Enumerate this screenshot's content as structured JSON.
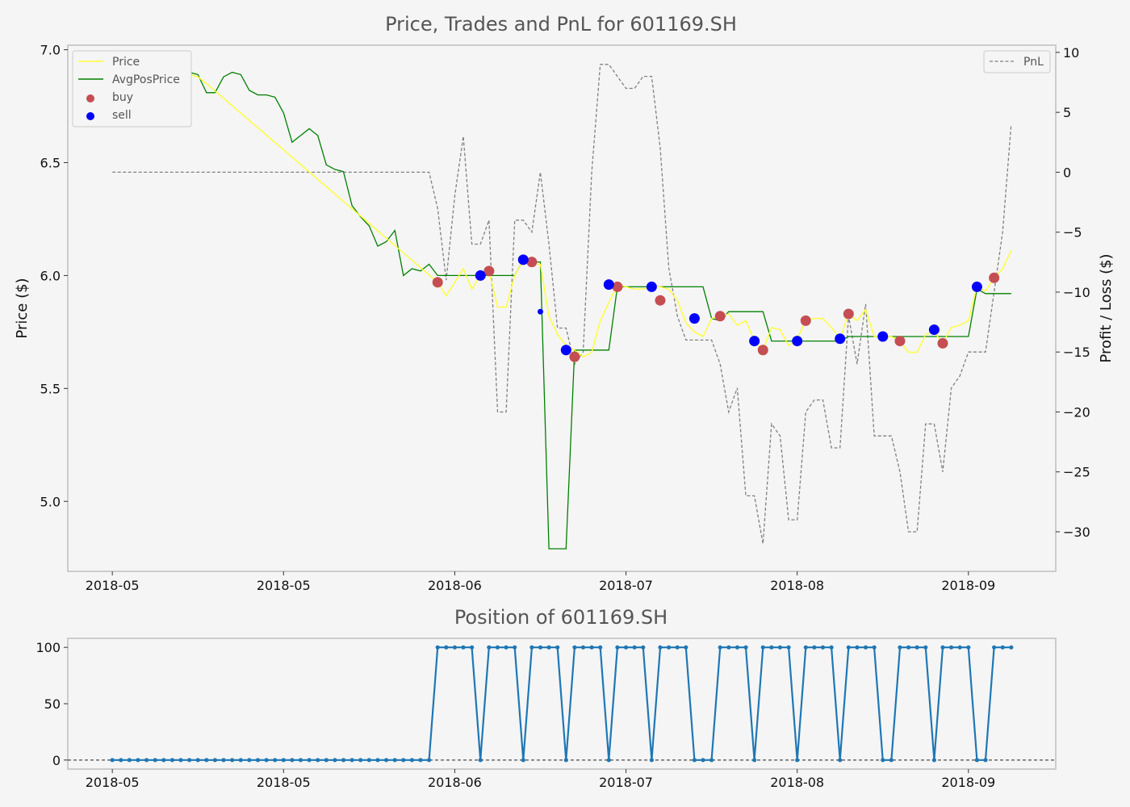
{
  "colors": {
    "price": "#ffff33",
    "avg": "#008000",
    "buy": "#c44e52",
    "sell": "#0000ff",
    "pnl": "#808080",
    "position": "#1f77b4",
    "spine": "#cccccc",
    "background": "#f5f5f5"
  },
  "chart_data": [
    {
      "type": "line",
      "title": "Price, Trades and PnL for 601169.SH",
      "ylabel": "Price ($)",
      "y2label": "Profit / Loss ($)",
      "ylim": [
        4.69,
        7.02
      ],
      "y2lim": [
        -33.3,
        10.6
      ],
      "yticks": [
        "5.0",
        "5.5",
        "6.0",
        "6.5",
        "7.0"
      ],
      "y2ticks": [
        "−30",
        "−25",
        "−20",
        "−15",
        "−10",
        "−5",
        "0",
        "5",
        "10"
      ],
      "y2tick_values": [
        -30,
        -25,
        -20,
        -15,
        -10,
        -5,
        0,
        5,
        10
      ],
      "xticks": [
        "2018-05",
        "2018-05",
        "2018-06",
        "2018-07",
        "2018-08",
        "2018-09"
      ],
      "xtick_pos": [
        0,
        20,
        40,
        60,
        80,
        100
      ],
      "x_range": [
        -5.2,
        110.2
      ],
      "legend": {
        "price": "Price",
        "avg": "AvgPosPrice",
        "buy": "buy",
        "sell": "sell",
        "pnl": "PnL"
      },
      "price": [
        [
          -2,
          6.8
        ],
        [
          0,
          6.81
        ],
        [
          1,
          6.8
        ],
        [
          2,
          6.8
        ],
        [
          3,
          6.82
        ],
        [
          4,
          6.84
        ],
        [
          5,
          6.85
        ],
        [
          6,
          6.87
        ],
        [
          7,
          6.88
        ],
        [
          8,
          6.87
        ],
        [
          9,
          6.89
        ],
        [
          10,
          6.88
        ],
        [
          11,
          6.85
        ],
        [
          38,
          5.97
        ],
        [
          39,
          5.91
        ],
        [
          40,
          5.97
        ],
        [
          41,
          6.03
        ],
        [
          42,
          5.94
        ],
        [
          43,
          6.0
        ],
        [
          44,
          6.02
        ],
        [
          45,
          5.86
        ],
        [
          46,
          5.86
        ],
        [
          47,
          6.0
        ],
        [
          48,
          6.07
        ],
        [
          49,
          6.05
        ],
        [
          50,
          6.05
        ],
        [
          51,
          5.82
        ],
        [
          52,
          5.74
        ],
        [
          53,
          5.69
        ],
        [
          54,
          5.67
        ],
        [
          55,
          5.64
        ],
        [
          56,
          5.66
        ],
        [
          57,
          5.8
        ],
        [
          58,
          5.88
        ],
        [
          59,
          5.96
        ],
        [
          60,
          5.95
        ],
        [
          61,
          5.94
        ],
        [
          62,
          5.94
        ],
        [
          63,
          5.95
        ],
        [
          64,
          5.95
        ],
        [
          65,
          5.94
        ],
        [
          66,
          5.89
        ],
        [
          67,
          5.79
        ],
        [
          68,
          5.75
        ],
        [
          69,
          5.73
        ],
        [
          70,
          5.81
        ],
        [
          71,
          5.82
        ],
        [
          72,
          5.83
        ],
        [
          73,
          5.78
        ],
        [
          74,
          5.8
        ],
        [
          75,
          5.71
        ],
        [
          76,
          5.67
        ],
        [
          77,
          5.77
        ],
        [
          78,
          5.76
        ],
        [
          79,
          5.69
        ],
        [
          80,
          5.72
        ],
        [
          81,
          5.8
        ],
        [
          82,
          5.81
        ],
        [
          83,
          5.81
        ],
        [
          84,
          5.77
        ],
        [
          85,
          5.72
        ],
        [
          86,
          5.83
        ],
        [
          87,
          5.8
        ],
        [
          88,
          5.85
        ],
        [
          89,
          5.73
        ],
        [
          90,
          5.73
        ],
        [
          91,
          5.73
        ],
        [
          92,
          5.71
        ],
        [
          93,
          5.66
        ],
        [
          94,
          5.66
        ],
        [
          95,
          5.74
        ],
        [
          96,
          5.75
        ],
        [
          97,
          5.7
        ],
        [
          98,
          5.77
        ],
        [
          99,
          5.78
        ],
        [
          100,
          5.8
        ],
        [
          101,
          5.95
        ],
        [
          102,
          5.93
        ],
        [
          103,
          5.99
        ],
        [
          104,
          6.03
        ],
        [
          105,
          6.11
        ]
      ],
      "avg_price": [
        [
          -2,
          6.8
        ],
        [
          0,
          6.81
        ],
        [
          1,
          6.79
        ],
        [
          2,
          6.8
        ],
        [
          3,
          6.84
        ],
        [
          4,
          6.86
        ],
        [
          5,
          6.85
        ],
        [
          6,
          6.87
        ],
        [
          7,
          6.89
        ],
        [
          8,
          6.88
        ],
        [
          9,
          6.9
        ],
        [
          10,
          6.89
        ],
        [
          11,
          6.81
        ],
        [
          12,
          6.81
        ],
        [
          13,
          6.88
        ],
        [
          14,
          6.9
        ],
        [
          15,
          6.89
        ],
        [
          16,
          6.82
        ],
        [
          17,
          6.8
        ],
        [
          18,
          6.8
        ],
        [
          19,
          6.79
        ],
        [
          20,
          6.72
        ],
        [
          21,
          6.59
        ],
        [
          22,
          6.62
        ],
        [
          23,
          6.65
        ],
        [
          24,
          6.62
        ],
        [
          25,
          6.49
        ],
        [
          26,
          6.47
        ],
        [
          27,
          6.46
        ],
        [
          28,
          6.31
        ],
        [
          29,
          6.26
        ],
        [
          30,
          6.22
        ],
        [
          31,
          6.13
        ],
        [
          32,
          6.15
        ],
        [
          33,
          6.2
        ],
        [
          34,
          6.0
        ],
        [
          35,
          6.03
        ],
        [
          36,
          6.02
        ],
        [
          37,
          6.05
        ],
        [
          38,
          6.0
        ],
        [
          39,
          6.0
        ],
        [
          40,
          6.0
        ],
        [
          41,
          6.0
        ],
        [
          42,
          6.0
        ],
        [
          43,
          6.0
        ],
        [
          44,
          6.0
        ],
        [
          45,
          6.0
        ],
        [
          46,
          6.0
        ],
        [
          47,
          6.0
        ],
        [
          48,
          6.07
        ],
        [
          49,
          6.06
        ],
        [
          50,
          6.06
        ],
        [
          51,
          4.79
        ],
        [
          52,
          4.79
        ],
        [
          53,
          4.79
        ],
        [
          54,
          5.67
        ],
        [
          55,
          5.67
        ],
        [
          56,
          5.67
        ],
        [
          57,
          5.67
        ],
        [
          58,
          5.67
        ],
        [
          59,
          5.95
        ],
        [
          60,
          5.95
        ],
        [
          61,
          5.95
        ],
        [
          62,
          5.95
        ],
        [
          63,
          5.95
        ],
        [
          64,
          5.95
        ],
        [
          65,
          5.95
        ],
        [
          66,
          5.95
        ],
        [
          67,
          5.95
        ],
        [
          68,
          5.95
        ],
        [
          69,
          5.95
        ],
        [
          70,
          5.81
        ],
        [
          71,
          5.8
        ],
        [
          72,
          5.84
        ],
        [
          73,
          5.84
        ],
        [
          74,
          5.84
        ],
        [
          75,
          5.84
        ],
        [
          76,
          5.84
        ],
        [
          77,
          5.71
        ],
        [
          78,
          5.71
        ],
        [
          79,
          5.71
        ],
        [
          80,
          5.71
        ],
        [
          81,
          5.71
        ],
        [
          82,
          5.71
        ],
        [
          83,
          5.71
        ],
        [
          84,
          5.71
        ],
        [
          85,
          5.71
        ],
        [
          86,
          5.73
        ],
        [
          87,
          5.73
        ],
        [
          88,
          5.73
        ],
        [
          89,
          5.73
        ],
        [
          90,
          5.73
        ],
        [
          91,
          5.73
        ],
        [
          92,
          5.73
        ],
        [
          93,
          5.73
        ],
        [
          94,
          5.73
        ],
        [
          95,
          5.73
        ],
        [
          96,
          5.73
        ],
        [
          97,
          5.73
        ],
        [
          98,
          5.73
        ],
        [
          99,
          5.73
        ],
        [
          100,
          5.73
        ],
        [
          101,
          5.94
        ],
        [
          102,
          5.92
        ],
        [
          103,
          5.92
        ],
        [
          104,
          5.92
        ],
        [
          105,
          5.92
        ]
      ],
      "buy": [
        [
          38,
          5.97
        ],
        [
          44,
          6.02
        ],
        [
          49,
          6.06
        ],
        [
          54,
          5.64
        ],
        [
          59,
          5.95
        ],
        [
          64,
          5.89
        ],
        [
          71,
          5.82
        ],
        [
          76,
          5.67
        ],
        [
          81,
          5.8
        ],
        [
          86,
          5.83
        ],
        [
          92,
          5.71
        ],
        [
          97,
          5.7
        ],
        [
          103,
          5.99
        ]
      ],
      "sell": [
        [
          43,
          6.0
        ],
        [
          48,
          6.07
        ],
        [
          53,
          5.67
        ],
        [
          58,
          5.96
        ],
        [
          63,
          5.95
        ],
        [
          68,
          5.81
        ],
        [
          75,
          5.71
        ],
        [
          80,
          5.71
        ],
        [
          85,
          5.72
        ],
        [
          90,
          5.73
        ],
        [
          96,
          5.76
        ],
        [
          101,
          5.95
        ]
      ],
      "sell_small": [
        [
          50,
          5.84
        ]
      ],
      "pnl": [
        [
          0,
          0
        ],
        [
          1,
          0
        ],
        [
          2,
          0
        ],
        [
          3,
          0
        ],
        [
          4,
          0
        ],
        [
          5,
          0
        ],
        [
          6,
          0
        ],
        [
          7,
          0
        ],
        [
          8,
          0
        ],
        [
          9,
          0
        ],
        [
          10,
          0
        ],
        [
          11,
          0
        ],
        [
          12,
          0
        ],
        [
          13,
          0
        ],
        [
          14,
          0
        ],
        [
          15,
          0
        ],
        [
          16,
          0
        ],
        [
          17,
          0
        ],
        [
          18,
          0
        ],
        [
          19,
          0
        ],
        [
          20,
          0
        ],
        [
          21,
          0
        ],
        [
          22,
          0
        ],
        [
          23,
          0
        ],
        [
          24,
          0
        ],
        [
          25,
          0
        ],
        [
          26,
          0
        ],
        [
          27,
          0
        ],
        [
          28,
          0
        ],
        [
          29,
          0
        ],
        [
          30,
          0
        ],
        [
          31,
          0
        ],
        [
          32,
          0
        ],
        [
          33,
          0
        ],
        [
          34,
          0
        ],
        [
          35,
          0
        ],
        [
          36,
          0
        ],
        [
          37,
          0
        ],
        [
          38,
          -3
        ],
        [
          39,
          -9
        ],
        [
          40,
          -2
        ],
        [
          41,
          3
        ],
        [
          42,
          -6
        ],
        [
          43,
          -6
        ],
        [
          44,
          -4
        ],
        [
          45,
          -20
        ],
        [
          46,
          -20
        ],
        [
          47,
          -4
        ],
        [
          48,
          -4
        ],
        [
          49,
          -5
        ],
        [
          50,
          0
        ],
        [
          51,
          -6
        ],
        [
          52,
          -13
        ],
        [
          53,
          -13
        ],
        [
          54,
          -16
        ],
        [
          55,
          -15
        ],
        [
          56,
          0
        ],
        [
          57,
          9
        ],
        [
          58,
          9
        ],
        [
          59,
          8
        ],
        [
          60,
          7
        ],
        [
          61,
          7
        ],
        [
          62,
          8
        ],
        [
          63,
          8
        ],
        [
          64,
          2
        ],
        [
          65,
          -8
        ],
        [
          66,
          -12
        ],
        [
          67,
          -14
        ],
        [
          68,
          -14
        ],
        [
          69,
          -14
        ],
        [
          70,
          -14
        ],
        [
          71,
          -16
        ],
        [
          72,
          -20
        ],
        [
          73,
          -18
        ],
        [
          74,
          -27
        ],
        [
          75,
          -27
        ],
        [
          76,
          -31
        ],
        [
          77,
          -21
        ],
        [
          78,
          -22
        ],
        [
          79,
          -29
        ],
        [
          80,
          -29
        ],
        [
          81,
          -20
        ],
        [
          82,
          -19
        ],
        [
          83,
          -19
        ],
        [
          84,
          -23
        ],
        [
          85,
          -23
        ],
        [
          86,
          -12
        ],
        [
          87,
          -16
        ],
        [
          88,
          -11
        ],
        [
          89,
          -22
        ],
        [
          90,
          -22
        ],
        [
          91,
          -22
        ],
        [
          92,
          -25
        ],
        [
          93,
          -30
        ],
        [
          94,
          -30
        ],
        [
          95,
          -21
        ],
        [
          96,
          -21
        ],
        [
          97,
          -25
        ],
        [
          98,
          -18
        ],
        [
          99,
          -17
        ],
        [
          100,
          -15
        ],
        [
          101,
          -15
        ],
        [
          102,
          -15
        ],
        [
          103,
          -10
        ],
        [
          104,
          -5
        ],
        [
          105,
          4
        ]
      ]
    },
    {
      "type": "line",
      "title": "Position of 601169.SH",
      "ylim": [
        -8,
        108
      ],
      "yticks": [
        "0",
        "50",
        "100"
      ],
      "ytick_values": [
        0,
        50,
        100
      ],
      "xticks": [
        "2018-05",
        "2018-05",
        "2018-06",
        "2018-07",
        "2018-08",
        "2018-09"
      ],
      "xtick_pos": [
        0,
        20,
        40,
        60,
        80,
        100
      ],
      "x_range": [
        -5.2,
        110.2
      ],
      "position": [
        0,
        0,
        0,
        0,
        0,
        0,
        0,
        0,
        0,
        0,
        0,
        0,
        0,
        0,
        0,
        0,
        0,
        0,
        0,
        0,
        0,
        0,
        0,
        0,
        0,
        0,
        0,
        0,
        0,
        0,
        0,
        0,
        0,
        0,
        0,
        0,
        0,
        0,
        100,
        100,
        100,
        100,
        100,
        0,
        100,
        100,
        100,
        100,
        0,
        100,
        100,
        100,
        100,
        0,
        100,
        100,
        100,
        100,
        0,
        100,
        100,
        100,
        100,
        0,
        100,
        100,
        100,
        100,
        0,
        0,
        0,
        100,
        100,
        100,
        100,
        0,
        100,
        100,
        100,
        100,
        0,
        100,
        100,
        100,
        100,
        0,
        100,
        100,
        100,
        100,
        0,
        0,
        100,
        100,
        100,
        100,
        0,
        100,
        100,
        100,
        100,
        0,
        0,
        100,
        100,
        100
      ]
    }
  ]
}
